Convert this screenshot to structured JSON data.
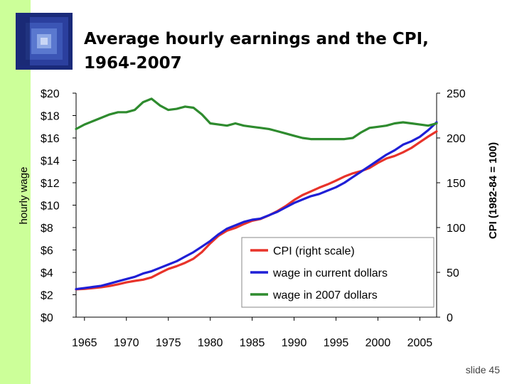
{
  "slide": {
    "title_line1": "Average hourly earnings and the CPI,",
    "title_line2": "1964-2007",
    "slide_number": "slide 45",
    "logo_icon": "blue-square-tunnel-logo-icon",
    "side_band_color": "#ccff99"
  },
  "chart_data": {
    "type": "line",
    "title": "Average hourly earnings and the CPI, 1964-2007",
    "xlabel": "",
    "ylabel": "hourly wage",
    "y2label": "CPI  (1982-84 = 100)",
    "xlim": [
      1964,
      2007
    ],
    "ylim": [
      0,
      20
    ],
    "y2lim": [
      0,
      250
    ],
    "x_ticks": [
      1965,
      1970,
      1975,
      1980,
      1985,
      1990,
      1995,
      2000,
      2005
    ],
    "y_ticks": [
      "$0",
      "$2",
      "$4",
      "$6",
      "$8",
      "$10",
      "$12",
      "$14",
      "$16",
      "$18",
      "$20"
    ],
    "y2_ticks": [
      "0",
      "50",
      "100",
      "150",
      "200",
      "250"
    ],
    "grid": false,
    "legend_position": "lower-right-inside",
    "series": [
      {
        "name": "CPI (right scale)",
        "axis": "right",
        "color": "#e8332a",
        "x": [
          1964,
          1965,
          1966,
          1967,
          1968,
          1969,
          1970,
          1971,
          1972,
          1973,
          1974,
          1975,
          1976,
          1977,
          1978,
          1979,
          1980,
          1981,
          1982,
          1983,
          1984,
          1985,
          1986,
          1987,
          1988,
          1989,
          1990,
          1991,
          1992,
          1993,
          1994,
          1995,
          1996,
          1997,
          1998,
          1999,
          2000,
          2001,
          2002,
          2003,
          2004,
          2005,
          2006,
          2007
        ],
        "values": [
          31,
          31.5,
          32.5,
          33.4,
          34.8,
          36.7,
          38.8,
          40.5,
          41.8,
          44.4,
          49.3,
          53.8,
          56.9,
          60.6,
          65.2,
          72.6,
          82.4,
          90.9,
          96.5,
          99.6,
          103.9,
          107.6,
          109.6,
          113.6,
          118.3,
          124,
          130.7,
          136.2,
          140.3,
          144.5,
          148.2,
          152.4,
          156.9,
          160.5,
          163,
          166.6,
          172.2,
          177.1,
          179.9,
          184,
          188.9,
          195.3,
          201.6,
          207.3
        ]
      },
      {
        "name": "wage in current dollars",
        "axis": "left",
        "color": "#1f1fd6",
        "x": [
          1964,
          1965,
          1966,
          1967,
          1968,
          1969,
          1970,
          1971,
          1972,
          1973,
          1974,
          1975,
          1976,
          1977,
          1978,
          1979,
          1980,
          1981,
          1982,
          1983,
          1984,
          1985,
          1986,
          1987,
          1988,
          1989,
          1990,
          1991,
          1992,
          1993,
          1994,
          1995,
          1996,
          1997,
          1998,
          1999,
          2000,
          2001,
          2002,
          2003,
          2004,
          2005,
          2006,
          2007
        ],
        "values": [
          2.5,
          2.6,
          2.7,
          2.8,
          3.0,
          3.2,
          3.4,
          3.6,
          3.9,
          4.1,
          4.4,
          4.7,
          5.0,
          5.4,
          5.8,
          6.3,
          6.8,
          7.4,
          7.9,
          8.2,
          8.5,
          8.7,
          8.8,
          9.1,
          9.4,
          9.8,
          10.2,
          10.5,
          10.8,
          11.0,
          11.3,
          11.6,
          12.0,
          12.5,
          13.0,
          13.5,
          14.0,
          14.5,
          14.9,
          15.4,
          15.7,
          16.1,
          16.7,
          17.4
        ]
      },
      {
        "name": "wage in 2007 dollars",
        "axis": "left",
        "color": "#2e8b2e",
        "x": [
          1964,
          1965,
          1966,
          1967,
          1968,
          1969,
          1970,
          1971,
          1972,
          1973,
          1974,
          1975,
          1976,
          1977,
          1978,
          1979,
          1980,
          1981,
          1982,
          1983,
          1984,
          1985,
          1986,
          1987,
          1988,
          1989,
          1990,
          1991,
          1992,
          1993,
          1994,
          1995,
          1996,
          1997,
          1998,
          1999,
          2000,
          2001,
          2002,
          2003,
          2004,
          2005,
          2006,
          2007
        ],
        "values": [
          16.8,
          17.2,
          17.5,
          17.8,
          18.1,
          18.3,
          18.3,
          18.5,
          19.2,
          19.5,
          18.9,
          18.5,
          18.6,
          18.8,
          18.7,
          18.1,
          17.3,
          17.2,
          17.1,
          17.3,
          17.1,
          17.0,
          16.9,
          16.8,
          16.6,
          16.4,
          16.2,
          16.0,
          15.9,
          15.9,
          15.9,
          15.9,
          15.9,
          16.0,
          16.5,
          16.9,
          17.0,
          17.1,
          17.3,
          17.4,
          17.3,
          17.2,
          17.1,
          17.3
        ]
      }
    ]
  }
}
